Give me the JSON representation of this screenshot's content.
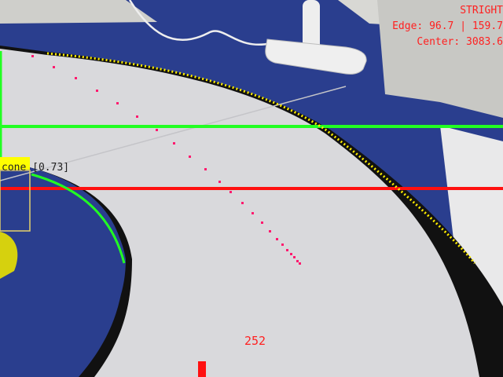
{
  "hud": {
    "mode": "STRIGHT",
    "edge": "Edge: 96.7 | 159.7",
    "center": "Center: 3083.6"
  },
  "detection": {
    "label": "cone [0.73]",
    "class": "cone",
    "confidence": 0.73
  },
  "speed_value": "252",
  "colors": {
    "hud_text": "#ff2020",
    "detection_label_bg": "#ffff00",
    "detection_box": "#e6d26a",
    "green_line": "#22ff22",
    "red_line": "#ff1010",
    "edge_dots": "#ffee00",
    "path_dots": "#ff1a6e",
    "track_surface": "#d9d9dc",
    "mat_blue": "#2a3e8e"
  },
  "icons": {
    "cone": "yellow-cone-icon",
    "cable_clip": "cable-clip-icon"
  }
}
